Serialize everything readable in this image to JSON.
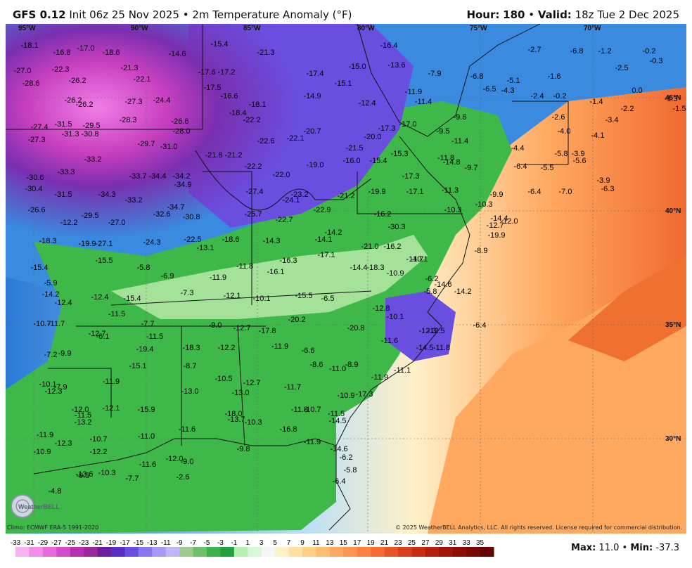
{
  "header": {
    "model": "GFS 0.12",
    "init_text": "Init 06z 25 Nov 2025",
    "product": "2m Temperature Anomaly (°F)",
    "hour_label": "Hour:",
    "hour_value": "180",
    "valid_label": "Valid:",
    "valid_value": "18z Tue 2 Dec 2025"
  },
  "footer": {
    "climo": "Climo: ECMWF ERA-5 1991-2020",
    "copyright": "© 2025 WeatherBELL Analytics, LLC. All rights reserved. License required for commercial distribution.",
    "max_label": "Max:",
    "max_value": "11.0",
    "min_label": "Min:",
    "min_value": "-37.3",
    "logo_text": "WeatherBELL"
  },
  "scale": {
    "ticks": [
      "-33",
      "-31",
      "-29",
      "-27",
      "-25",
      "-23",
      "-21",
      "-19",
      "-17",
      "-15",
      "-13",
      "-11",
      "-9",
      "-7",
      "-5",
      "-3",
      "-1",
      "1",
      "3",
      "5",
      "7",
      "9",
      "11",
      "13",
      "15",
      "17",
      "19",
      "21",
      "23",
      "25",
      "27",
      "29",
      "31",
      "33",
      "35"
    ],
    "colors": [
      "#f5b3f0",
      "#f08ee8",
      "#e66add",
      "#d44bcc",
      "#b82fb3",
      "#9a2a99",
      "#6b1fa0",
      "#5a2cc0",
      "#6a4ee0",
      "#8a76f0",
      "#a69af5",
      "#bfb5f8",
      "#9ecb8f",
      "#6fc06a",
      "#3cb04a",
      "#22a040",
      "#b6f0b0",
      "#d8f7d4",
      "#f5f5f5",
      "#fff0c8",
      "#ffe0a0",
      "#ffcf88",
      "#ffbb70",
      "#ffa860",
      "#ff9550",
      "#ff8040",
      "#f86a30",
      "#e85525",
      "#d8401c",
      "#c82d14",
      "#b41e0e",
      "#a0140a",
      "#8c0c06",
      "#780804",
      "#640402"
    ]
  },
  "axes": {
    "lon_labels": [
      "95°W",
      "90°W",
      "85°W",
      "80°W",
      "75°W",
      "70°W"
    ],
    "lat_labels": [
      "45°N",
      "40°N",
      "35°N",
      "30°N"
    ]
  },
  "values": [
    "-18.1",
    "-16.8",
    "-17.0",
    "-18.6",
    "-21.3",
    "-14.6",
    "-15.4",
    "-21.3",
    "-16.4",
    "-2.7",
    "-6.8",
    "-1.2",
    "-0.2",
    "-0.3",
    "-27.0",
    "-22.3",
    "-26.2",
    "-22.1",
    "-17.6",
    "-17.2",
    "-17.4",
    "-15.0",
    "-13.6",
    "-7.9",
    "-6.8",
    "-1.6",
    "-2.5",
    "-28.6",
    "-26.2",
    "-26.2",
    "-27.3",
    "-24.4",
    "-17.5",
    "-16.6",
    "-18.1",
    "-14.9",
    "-15.1",
    "-12.4",
    "-11.9",
    "-11.4",
    "-5.1",
    "-6.5",
    "-4.3",
    "-2.4",
    "-0.2",
    "0.0",
    "-1.4",
    "-2.2",
    "-1.3",
    "-1.5",
    "-27.4",
    "-31.5",
    "-29.5",
    "-28.3",
    "-26.6",
    "-18.4",
    "-22.2",
    "-17.3",
    "-17.0",
    "-9.6",
    "-2.6",
    "-3.4",
    "-31.3",
    "-30.8",
    "-28.0",
    "-20.7",
    "-20.0",
    "-15.3",
    "-9.5",
    "-11.4",
    "-4.0",
    "-4.1",
    "-27.3",
    "-29.7",
    "-31.0",
    "-22.6",
    "-22.1",
    "-21.5",
    "-16.0",
    "-15.4",
    "-14.8",
    "-11.8",
    "-4.4",
    "-5.8",
    "-3.9",
    "-33.2",
    "-21.8",
    "-21.2",
    "-22.2",
    "-19.0",
    "-9.7",
    "-6.4",
    "-5.5",
    "-5.6",
    "-30.6",
    "-33.3",
    "-33.7",
    "-34.4",
    "-34.2",
    "-22.0",
    "-17.3",
    "-30.4",
    "-34.9",
    "-27.4",
    "-23.2",
    "-21.2",
    "-19.9",
    "-17.1",
    "-11.3",
    "-9.9",
    "-6.4",
    "-7.0",
    "-3.9",
    "-6.3",
    "-31.5",
    "-34.3",
    "-33.2",
    "-24.1",
    "-10.3",
    "-26.6",
    "-29.5",
    "-34.7",
    "-32.6",
    "-30.8",
    "-25.7",
    "-22.7",
    "-22.9",
    "-16.2",
    "-10.3",
    "-12.7",
    "-12.2",
    "-27.0",
    "-30.3",
    "-14.4",
    "-12.0",
    "-19.9",
    "-18.3",
    "-19.9",
    "-27.1",
    "-24.3",
    "-22.5",
    "-18.6",
    "-14.3",
    "-14.2",
    "-21.0",
    "-13.1",
    "-14.1",
    "-17.1",
    "-16.2",
    "-14.7",
    "-15.5",
    "-5.8",
    "-11.8",
    "-16.3",
    "-14.4",
    "-10.1",
    "-8.9",
    "-15.4",
    "-11.9",
    "-16.1",
    "-18.3",
    "-6.2",
    "-5.9",
    "-6.9",
    "-10.9",
    "-14.6",
    "-14.2",
    "-14.2",
    "-12.4",
    "-12.4",
    "-15.4",
    "-7.3",
    "-12.1",
    "-10.1",
    "-15.5",
    "-6.5",
    "-5.8",
    "-11.5",
    "-12.7",
    "-12.8",
    "-10.1",
    "-10.7",
    "-11.7",
    "-7.7",
    "-9.0",
    "-12.7",
    "-17.8",
    "-20.2",
    "-20.8",
    "-6.4",
    "-6.1",
    "-11.5",
    "-11.6",
    "-12.3",
    "-12.5",
    "-7.2",
    "-9.9",
    "-19.4",
    "-18.3",
    "-12.2",
    "-11.9",
    "-6.6",
    "-14.5",
    "-11.8",
    "-15.1",
    "-8.7",
    "-8.6",
    "-8.9",
    "-11.0",
    "-11.1",
    "-10.1",
    "-7.9",
    "-12.3",
    "-11.9",
    "-10.5",
    "-12.7",
    "-11.7",
    "-11.9",
    "-13.0",
    "-13.0",
    "-10.9",
    "-17.3",
    "-11.5",
    "-12.1",
    "-15.9",
    "-18.0",
    "-11.8",
    "-10.7",
    "-12.0",
    "-13.2",
    "-10.3",
    "-11.5",
    "-14.5",
    "-13.7",
    "-11.9",
    "-12.3",
    "-10.7",
    "-11.0",
    "-11.6",
    "-16.8",
    "-11.9",
    "-12.2",
    "-10.9",
    "-12.0",
    "-9.8",
    "-14.6",
    "-13.6",
    "-10.3",
    "-11.6",
    "-9.0",
    "-6.2",
    "-9.5",
    "-7.7",
    "-2.6",
    "-6.4",
    "-5.8",
    "-4.8"
  ]
}
